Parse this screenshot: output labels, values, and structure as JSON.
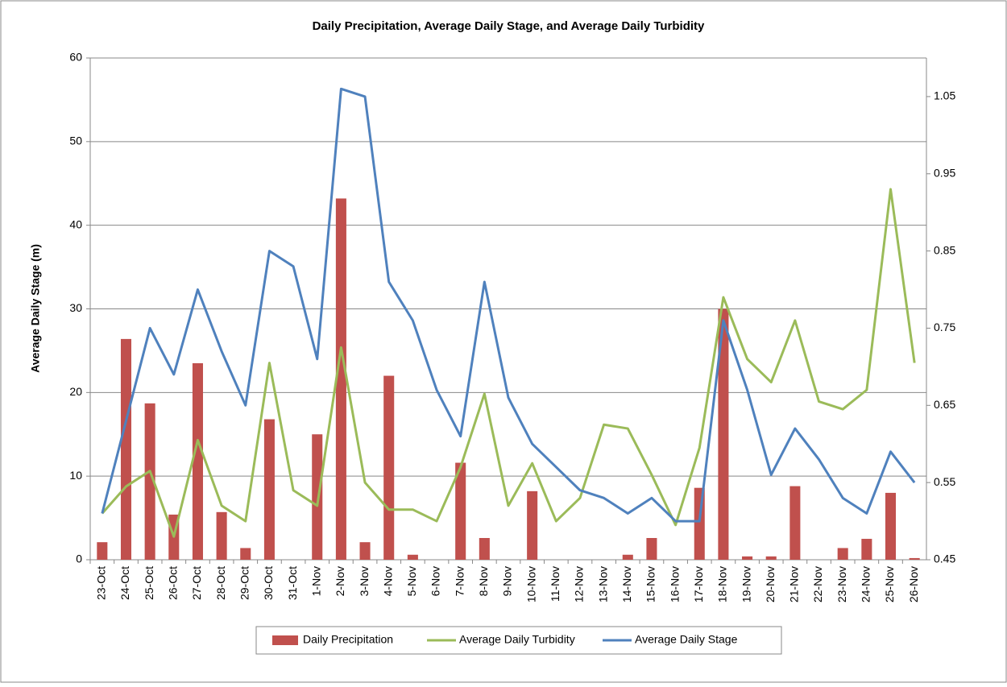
{
  "chart_data": {
    "type": "bar-line",
    "title": "Daily Precipitation, Average Daily Stage, and Average Daily Turbidity",
    "y_label": "Average Daily Stage (m)",
    "categories": [
      "23-Oct",
      "24-Oct",
      "25-Oct",
      "26-Oct",
      "27-Oct",
      "28-Oct",
      "29-Oct",
      "30-Oct",
      "31-Oct",
      "1-Nov",
      "2-Nov",
      "3-Nov",
      "4-Nov",
      "5-Nov",
      "6-Nov",
      "7-Nov",
      "8-Nov",
      "9-Nov",
      "10-Nov",
      "11-Nov",
      "12-Nov",
      "13-Nov",
      "14-Nov",
      "15-Nov",
      "16-Nov",
      "17-Nov",
      "18-Nov",
      "19-Nov",
      "20-Nov",
      "21-Nov",
      "22-Nov",
      "23-Nov",
      "24-Nov",
      "25-Nov",
      "26-Nov"
    ],
    "series": [
      {
        "name": "Daily Precipitation",
        "type": "bar",
        "color": "#c0504d",
        "axis": "y",
        "values": [
          2.1,
          26.4,
          18.7,
          5.4,
          23.5,
          5.7,
          1.4,
          16.8,
          0,
          15.0,
          43.2,
          2.1,
          22.0,
          0.6,
          0,
          11.6,
          2.6,
          0,
          8.2,
          0,
          0,
          0,
          0.6,
          2.6,
          0,
          8.6,
          30.0,
          0.4,
          0.4,
          8.8,
          0,
          1.4,
          2.5,
          8.0,
          0.2
        ]
      },
      {
        "name": "Average Daily Turbidity",
        "type": "line",
        "color": "#9bbb59",
        "axis": "y2",
        "values": [
          0.51,
          0.545,
          0.565,
          0.48,
          0.605,
          0.52,
          0.5,
          0.705,
          0.54,
          0.52,
          0.725,
          0.55,
          0.515,
          0.515,
          0.5,
          0.57,
          0.665,
          0.52,
          0.575,
          0.5,
          0.53,
          0.625,
          0.62,
          0.56,
          0.495,
          0.595,
          0.79,
          0.71,
          0.68,
          0.76,
          0.655,
          0.645,
          0.67,
          0.93,
          0.705
        ]
      },
      {
        "name": "Average Daily Stage",
        "type": "line",
        "color": "#4f81bd",
        "axis": "y2",
        "values": [
          0.51,
          0.63,
          0.75,
          0.69,
          0.8,
          0.72,
          0.65,
          0.85,
          0.83,
          0.71,
          1.06,
          1.05,
          0.81,
          0.76,
          0.67,
          0.61,
          0.81,
          0.66,
          0.6,
          0.57,
          0.54,
          0.53,
          0.51,
          0.53,
          0.5,
          0.5,
          0.76,
          0.67,
          0.56,
          0.62,
          0.58,
          0.53,
          0.51,
          0.59,
          0.55
        ]
      }
    ],
    "ylim": [
      0,
      60
    ],
    "yticks": [
      0,
      10,
      20,
      30,
      40,
      50,
      60
    ],
    "y2lim": [
      0.45,
      1.1
    ],
    "y2ticks": [
      0.45,
      0.55,
      0.65,
      0.75,
      0.85,
      0.95,
      1.05
    ],
    "grid": true,
    "legend": "bottom"
  }
}
